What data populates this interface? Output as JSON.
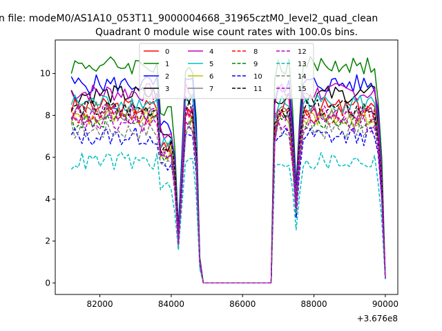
{
  "figure": {
    "suptitle": "n file: modeM0/AS1A10_053T11_9000004668_31965cztM0_level2_quad_clean",
    "title": "Quadrant 0 module wise count rates with 100.0s bins.",
    "x_offset_label": "+3.676e8"
  },
  "chart_data": {
    "type": "line",
    "title": "Quadrant 0 module wise count rates with 100.0s bins.",
    "xlabel": "",
    "ylabel": "",
    "x_offset": 367600000,
    "xlim": [
      80750,
      90350
    ],
    "ylim": [
      -0.55,
      11.6
    ],
    "xticks": [
      82000,
      84000,
      86000,
      88000,
      90000
    ],
    "xtick_labels": [
      "82000",
      "84000",
      "86000",
      "88000",
      "90000"
    ],
    "yticks": [
      0,
      2,
      4,
      6,
      8,
      10
    ],
    "ytick_labels": [
      "0",
      "2",
      "4",
      "6",
      "8",
      "10"
    ],
    "grid": false,
    "legend_position": "top-center",
    "legend_columns": 4,
    "x_gap": [
      84900,
      86800
    ],
    "series": [
      {
        "name": "0",
        "color": "#ff0000",
        "dash": "solid",
        "base": 8.4
      },
      {
        "name": "1",
        "color": "#008000",
        "dash": "solid",
        "base": 10.4
      },
      {
        "name": "2",
        "color": "#0000ff",
        "dash": "solid",
        "base": 9.5
      },
      {
        "name": "3",
        "color": "#000000",
        "dash": "solid",
        "base": 9.0
      },
      {
        "name": "4",
        "color": "#bf00bf",
        "dash": "solid",
        "base": 9.1
      },
      {
        "name": "5",
        "color": "#00bfbf",
        "dash": "solid",
        "base": 8.6
      },
      {
        "name": "6",
        "color": "#bfbf00",
        "dash": "solid",
        "base": 7.9
      },
      {
        "name": "7",
        "color": "#808080",
        "dash": "solid",
        "base": 8.2
      },
      {
        "name": "8",
        "color": "#ff0000",
        "dash": "dashed",
        "base": 8.0
      },
      {
        "name": "9",
        "color": "#008000",
        "dash": "dashed",
        "base": 7.7
      },
      {
        "name": "10",
        "color": "#0000ff",
        "dash": "dashed",
        "base": 7.0
      },
      {
        "name": "11",
        "color": "#000000",
        "dash": "dashed",
        "base": 8.3
      },
      {
        "name": "12",
        "color": "#bf00bf",
        "dash": "dashed",
        "base": 8.1
      },
      {
        "name": "13",
        "color": "#00bfbf",
        "dash": "dashed",
        "base": 5.8
      },
      {
        "name": "14",
        "color": "#808080",
        "dash": "dashed",
        "base": 7.3
      },
      {
        "name": "15",
        "color": "#bf00bf",
        "dash": "dashed",
        "base": 7.6
      }
    ]
  }
}
